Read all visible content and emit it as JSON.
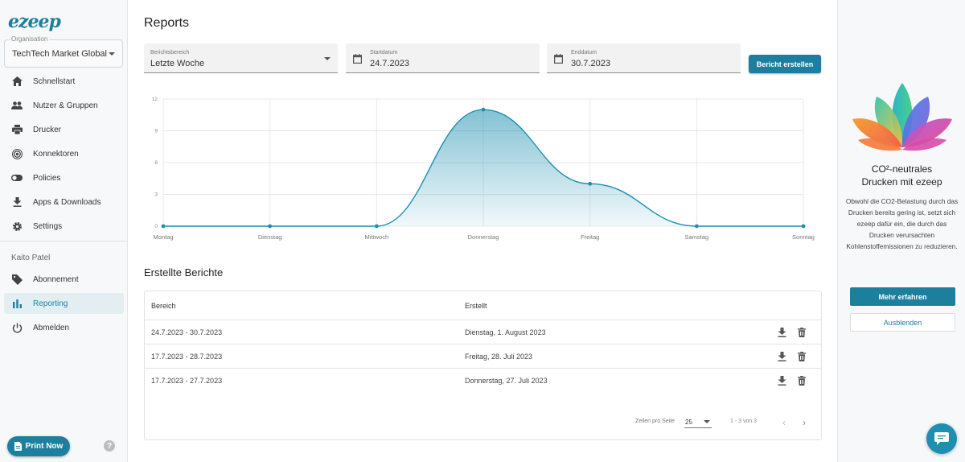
{
  "app": {
    "logo": "ezeep"
  },
  "sidebar": {
    "org_label": "Organisation",
    "org_value": "TechTech Market Global",
    "items": [
      {
        "label": "Schnellstart",
        "icon": "home-icon"
      },
      {
        "label": "Nutzer & Gruppen",
        "icon": "people-icon"
      },
      {
        "label": "Drucker",
        "icon": "printer-icon"
      },
      {
        "label": "Konnektoren",
        "icon": "connector-icon"
      },
      {
        "label": "Policies",
        "icon": "toggle-icon"
      },
      {
        "label": "Apps & Downloads",
        "icon": "download-icon"
      },
      {
        "label": "Settings",
        "icon": "gear-icon"
      }
    ],
    "user_name": "Kaito Patel",
    "user_items": [
      {
        "label": "Abonnement",
        "icon": "tag-icon"
      },
      {
        "label": "Reporting",
        "icon": "bar-chart-icon",
        "active": true
      },
      {
        "label": "Abmelden",
        "icon": "power-icon"
      }
    ],
    "print_now": "Print Now",
    "help": "?"
  },
  "main": {
    "title": "Reports",
    "range": {
      "label": "Berichtsbereich",
      "value": "Letzte Woche"
    },
    "start": {
      "label": "Startdatum",
      "value": "24.7.2023"
    },
    "end": {
      "label": "Enddatum",
      "value": "30.7.2023"
    },
    "create_button": "Bericht erstellen",
    "section_title": "Erstellte Berichte",
    "table": {
      "headers": [
        "Bereich",
        "Erstellt"
      ],
      "rows": [
        {
          "range": "24.7.2023 - 30.7.2023",
          "created": "Dienstag, 1. August 2023"
        },
        {
          "range": "17.7.2023 - 28.7.2023",
          "created": "Freitag, 28. Juli 2023"
        },
        {
          "range": "17.7.2023 - 27.7.2023",
          "created": "Donnerstag, 27. Juli 2023"
        }
      ]
    },
    "pager": {
      "rows_label": "Zeilen pro Seite",
      "rows_value": "25",
      "range_text": "1 - 3 von 3",
      "prev": "‹",
      "next": "›"
    }
  },
  "chart_data": {
    "type": "area",
    "categories": [
      "Montag",
      "Dienstag",
      "Mittwoch",
      "Donnerstag",
      "Freitag",
      "Samstag",
      "Sonntag"
    ],
    "values": [
      0,
      0,
      0,
      11,
      4,
      0,
      0
    ],
    "yticks": [
      0,
      3,
      6,
      9,
      12
    ],
    "ylim": [
      0,
      12
    ],
    "color": "#1d8fb0",
    "grid": true
  },
  "promo": {
    "title_line1": "CO²-neutrales",
    "title_line2": "Drucken mit ezeep",
    "text": "Obwohl die CO2-Belastung durch das Drucken bereits gering ist, setzt sich ezeep dafür ein, die durch das Drucken verursachten Kohlenstoffemissionen zu reduzieren.",
    "more_button": "Mehr erfahren",
    "hide_button": "Ausblenden"
  },
  "colors": {
    "accent": "#1d7f9e",
    "chart": "#1d8fb0"
  }
}
